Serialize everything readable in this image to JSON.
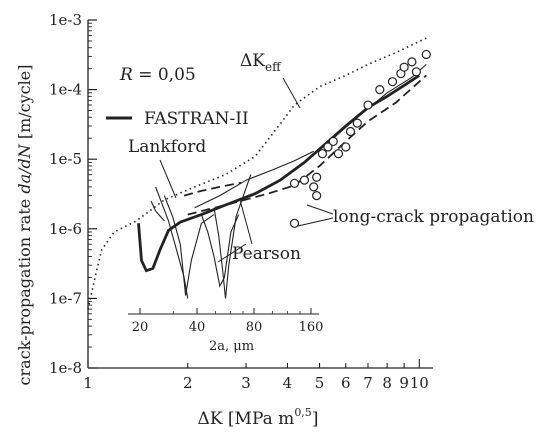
{
  "chart_data": {
    "type": "scatter",
    "title": "",
    "xlabel_main": "ΔK [MPa m",
    "xlabel_exp": "0,5",
    "xlabel_close": "]",
    "ylabel": "crack-propagation rate",
    "ylabel_italic": "da/dN",
    "ylabel_unit": "[m/cycle]",
    "x_scale": "log",
    "y_scale": "log",
    "xlim": [
      1,
      11
    ],
    "ylim": [
      1e-08,
      0.001
    ],
    "x_tick_labels": [
      {
        "value": 1,
        "label": "1"
      },
      {
        "value": 2,
        "label": "2"
      },
      {
        "value": 3,
        "label": "3"
      },
      {
        "value": 4,
        "label": "4"
      },
      {
        "value": 5,
        "label": "5"
      },
      {
        "value": 6,
        "label": "6"
      },
      {
        "value": 7,
        "label": "7"
      },
      {
        "value": 8,
        "label": "8"
      },
      {
        "value": 9,
        "label": "9"
      },
      {
        "value": 10,
        "label": "10"
      }
    ],
    "y_tick_labels": [
      {
        "value": 1e-08,
        "label": "1e-8"
      },
      {
        "value": 1e-07,
        "label": "1e-7"
      },
      {
        "value": 1e-06,
        "label": "1e-6"
      },
      {
        "value": 1e-05,
        "label": "1e-5"
      },
      {
        "value": 0.0001,
        "label": "1e-4"
      },
      {
        "value": 0.001,
        "label": "1e-3"
      }
    ],
    "annotations": {
      "r_label": "R",
      "r_value": "= 0,05",
      "dkeff_main": "ΔK",
      "dkeff_sub": "eff",
      "fastran": "FASTRAN-II",
      "lankford": "Lankford",
      "pearson": "Pearson",
      "long_crack": "long-crack propagation"
    },
    "inset_axis": {
      "label": "2a, μm",
      "ticks": [
        {
          "value": 20,
          "label": "20"
        },
        {
          "value": 40,
          "label": "40"
        },
        {
          "value": 80,
          "label": "80"
        },
        {
          "value": 160,
          "label": "160"
        }
      ]
    },
    "series": [
      {
        "id": "dkeff",
        "style": "dotted",
        "points": [
          [
            1,
            7e-08
          ],
          [
            1.05,
            2e-07
          ],
          [
            1.1,
            5e-07
          ],
          [
            1.2,
            9e-07
          ],
          [
            1.4,
            1.3e-06
          ],
          [
            1.7,
            2.6e-06
          ],
          [
            2.1,
            4e-06
          ],
          [
            2.6,
            6e-06
          ],
          [
            3.2,
            1.1e-05
          ],
          [
            3.8,
            3.2e-05
          ],
          [
            4.2,
            6e-05
          ],
          [
            5,
            0.00011
          ],
          [
            6,
            0.00016
          ],
          [
            7,
            0.00023
          ],
          [
            8.5,
            0.00034
          ],
          [
            10.5,
            0.00055
          ]
        ]
      },
      {
        "id": "fastran",
        "style": "solid-thick",
        "points": [
          [
            1.42,
            1.2e-06
          ],
          [
            1.45,
            3.5e-07
          ],
          [
            1.5,
            2.5e-07
          ],
          [
            1.57,
            2.7e-07
          ],
          [
            1.65,
            5e-07
          ],
          [
            1.75,
            9.5e-07
          ],
          [
            1.9,
            1.25e-06
          ],
          [
            2.2,
            1.6e-06
          ],
          [
            2.6,
            2.2e-06
          ],
          [
            3.2,
            3.2e-06
          ],
          [
            3.8,
            5e-06
          ],
          [
            4.5,
            9e-06
          ],
          [
            5,
            1.4e-05
          ],
          [
            6,
            3e-05
          ],
          [
            7,
            5.5e-05
          ],
          [
            8,
            8e-05
          ],
          [
            9,
            0.000115
          ],
          [
            10,
            0.00016
          ]
        ]
      },
      {
        "id": "long_crack_upper",
        "style": "solid-thin",
        "points": [
          [
            4.8,
            1.2e-05
          ],
          [
            5.5,
            2e-05
          ],
          [
            6.5,
            4e-05
          ],
          [
            8,
            9e-05
          ],
          [
            9.5,
            0.00015
          ],
          [
            10.5,
            0.00023
          ]
        ]
      },
      {
        "id": "long_crack_dashed",
        "style": "dashed",
        "points": [
          [
            2,
            1.6e-06
          ],
          [
            2.7,
            2.3e-06
          ],
          [
            3.5,
            3.2e-06
          ],
          [
            4.2,
            4.2e-06
          ],
          [
            5,
            8e-06
          ],
          [
            6,
            1.8e-05
          ],
          [
            7,
            3.5e-05
          ],
          [
            8.5,
            6.5e-05
          ],
          [
            10.5,
            0.00016
          ]
        ]
      },
      {
        "id": "lankford_dashed",
        "style": "dashed",
        "points": [
          [
            1.95,
            3e-06
          ],
          [
            2.2,
            3.5e-06
          ],
          [
            2.5,
            4e-06
          ],
          [
            2.9,
            4.6e-06
          ]
        ]
      },
      {
        "id": "small_crack_upper",
        "style": "solid-thin",
        "points": [
          [
            2.1,
            2e-06
          ],
          [
            2.5,
            3e-06
          ],
          [
            3,
            5e-06
          ],
          [
            3.6,
            7e-06
          ],
          [
            4.2,
            9.5e-06
          ],
          [
            4.8,
            1.3e-05
          ]
        ]
      },
      {
        "id": "small_crack_1",
        "style": "solid-thin",
        "points": [
          [
            1.7,
            3e-06
          ],
          [
            1.8,
            1.5e-06
          ],
          [
            1.9,
            6e-07
          ],
          [
            1.97,
            1.1e-07
          ],
          [
            2.05,
            3.5e-07
          ],
          [
            2.2,
            1.2e-06
          ],
          [
            2.4,
            1.6e-06
          ]
        ]
      },
      {
        "id": "small_crack_2",
        "style": "solid-thin",
        "points": [
          [
            1.6,
            4e-06
          ],
          [
            1.75,
            1.3e-06
          ],
          [
            1.85,
            5e-07
          ],
          [
            1.95,
            2e-07
          ],
          [
            2.0,
            1e-07
          ]
        ]
      },
      {
        "id": "small_crack_3",
        "style": "solid-thin",
        "points": [
          [
            2.2,
            1.6e-06
          ],
          [
            2.3,
            9e-07
          ],
          [
            2.4,
            4e-07
          ],
          [
            2.5,
            1.5e-07
          ],
          [
            2.58,
            2e-07
          ],
          [
            2.7,
            9e-07
          ],
          [
            2.85,
            1.6e-06
          ]
        ]
      },
      {
        "id": "small_crack_4",
        "style": "solid-thin",
        "points": [
          [
            2.4,
            2e-06
          ],
          [
            2.48,
            8e-07
          ],
          [
            2.55,
            2.5e-07
          ],
          [
            2.6,
            1e-07
          ],
          [
            2.66,
            3e-07
          ],
          [
            2.8,
            1.5e-06
          ],
          [
            3.1,
            6e-06
          ]
        ]
      },
      {
        "id": "small_crack_5",
        "style": "solid-thin",
        "points": [
          [
            1.55,
            2.5e-06
          ],
          [
            1.6,
            1.8e-06
          ],
          [
            1.7,
            1.3e-06
          ]
        ]
      }
    ],
    "markers": [
      [
        4.2,
        4.5e-06
      ],
      [
        4.5,
        5e-06
      ],
      [
        4.8,
        4e-06
      ],
      [
        4.9,
        5.5e-06
      ],
      [
        4.9,
        3e-06
      ],
      [
        4.2,
        1.2e-06
      ],
      [
        5.1,
        1.2e-05
      ],
      [
        5.3,
        1.5e-05
      ],
      [
        5.5,
        1.8e-05
      ],
      [
        5.7,
        1.2e-05
      ],
      [
        6,
        1.5e-05
      ],
      [
        6.2,
        2.5e-05
      ],
      [
        6.5,
        3.3e-05
      ],
      [
        7,
        6e-05
      ],
      [
        7.6,
        0.0001
      ],
      [
        8.3,
        0.00013
      ],
      [
        8.8,
        0.00017
      ],
      [
        9,
        0.00021
      ],
      [
        9.5,
        0.00025
      ],
      [
        9.8,
        0.00018
      ],
      [
        10.5,
        0.00032
      ]
    ]
  }
}
